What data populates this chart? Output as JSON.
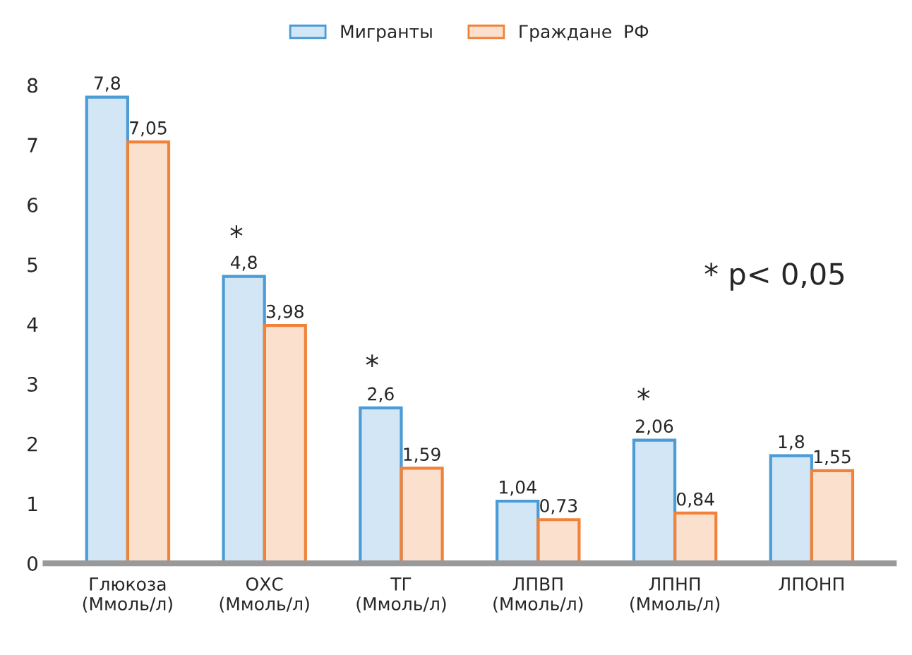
{
  "chart_data": {
    "type": "bar",
    "categories": [
      "Глюкоза\n(Ммоль/л)",
      "ОХС\n(Ммоль/л)",
      "ТГ\n(Ммоль/л)",
      "ЛПВП\n(Ммоль/л)",
      "ЛПНП\n(Ммоль/л)",
      "ЛПОНП"
    ],
    "series": [
      {
        "name": "Мигранты",
        "color": "#4a9bd6",
        "values": [
          7.8,
          4.8,
          2.6,
          1.04,
          2.06,
          1.8
        ],
        "value_labels": [
          "7,8",
          "4,8",
          "2,6",
          "1,04",
          "2,06",
          "1,8"
        ]
      },
      {
        "name": "Граждане  РФ",
        "color": "#f0823a",
        "values": [
          7.05,
          3.98,
          1.59,
          0.73,
          0.84,
          1.55
        ],
        "value_labels": [
          "7,05",
          "3,98",
          "1,59",
          "0,73",
          "0,84",
          "1,55"
        ]
      }
    ],
    "ylim": [
      0,
      8
    ],
    "yticks": [
      0,
      1,
      2,
      3,
      4,
      5,
      6,
      7,
      8
    ],
    "annotations": [
      "*",
      "*",
      "*",
      "* p< 0,05"
    ],
    "legend": "top",
    "grid": false
  }
}
